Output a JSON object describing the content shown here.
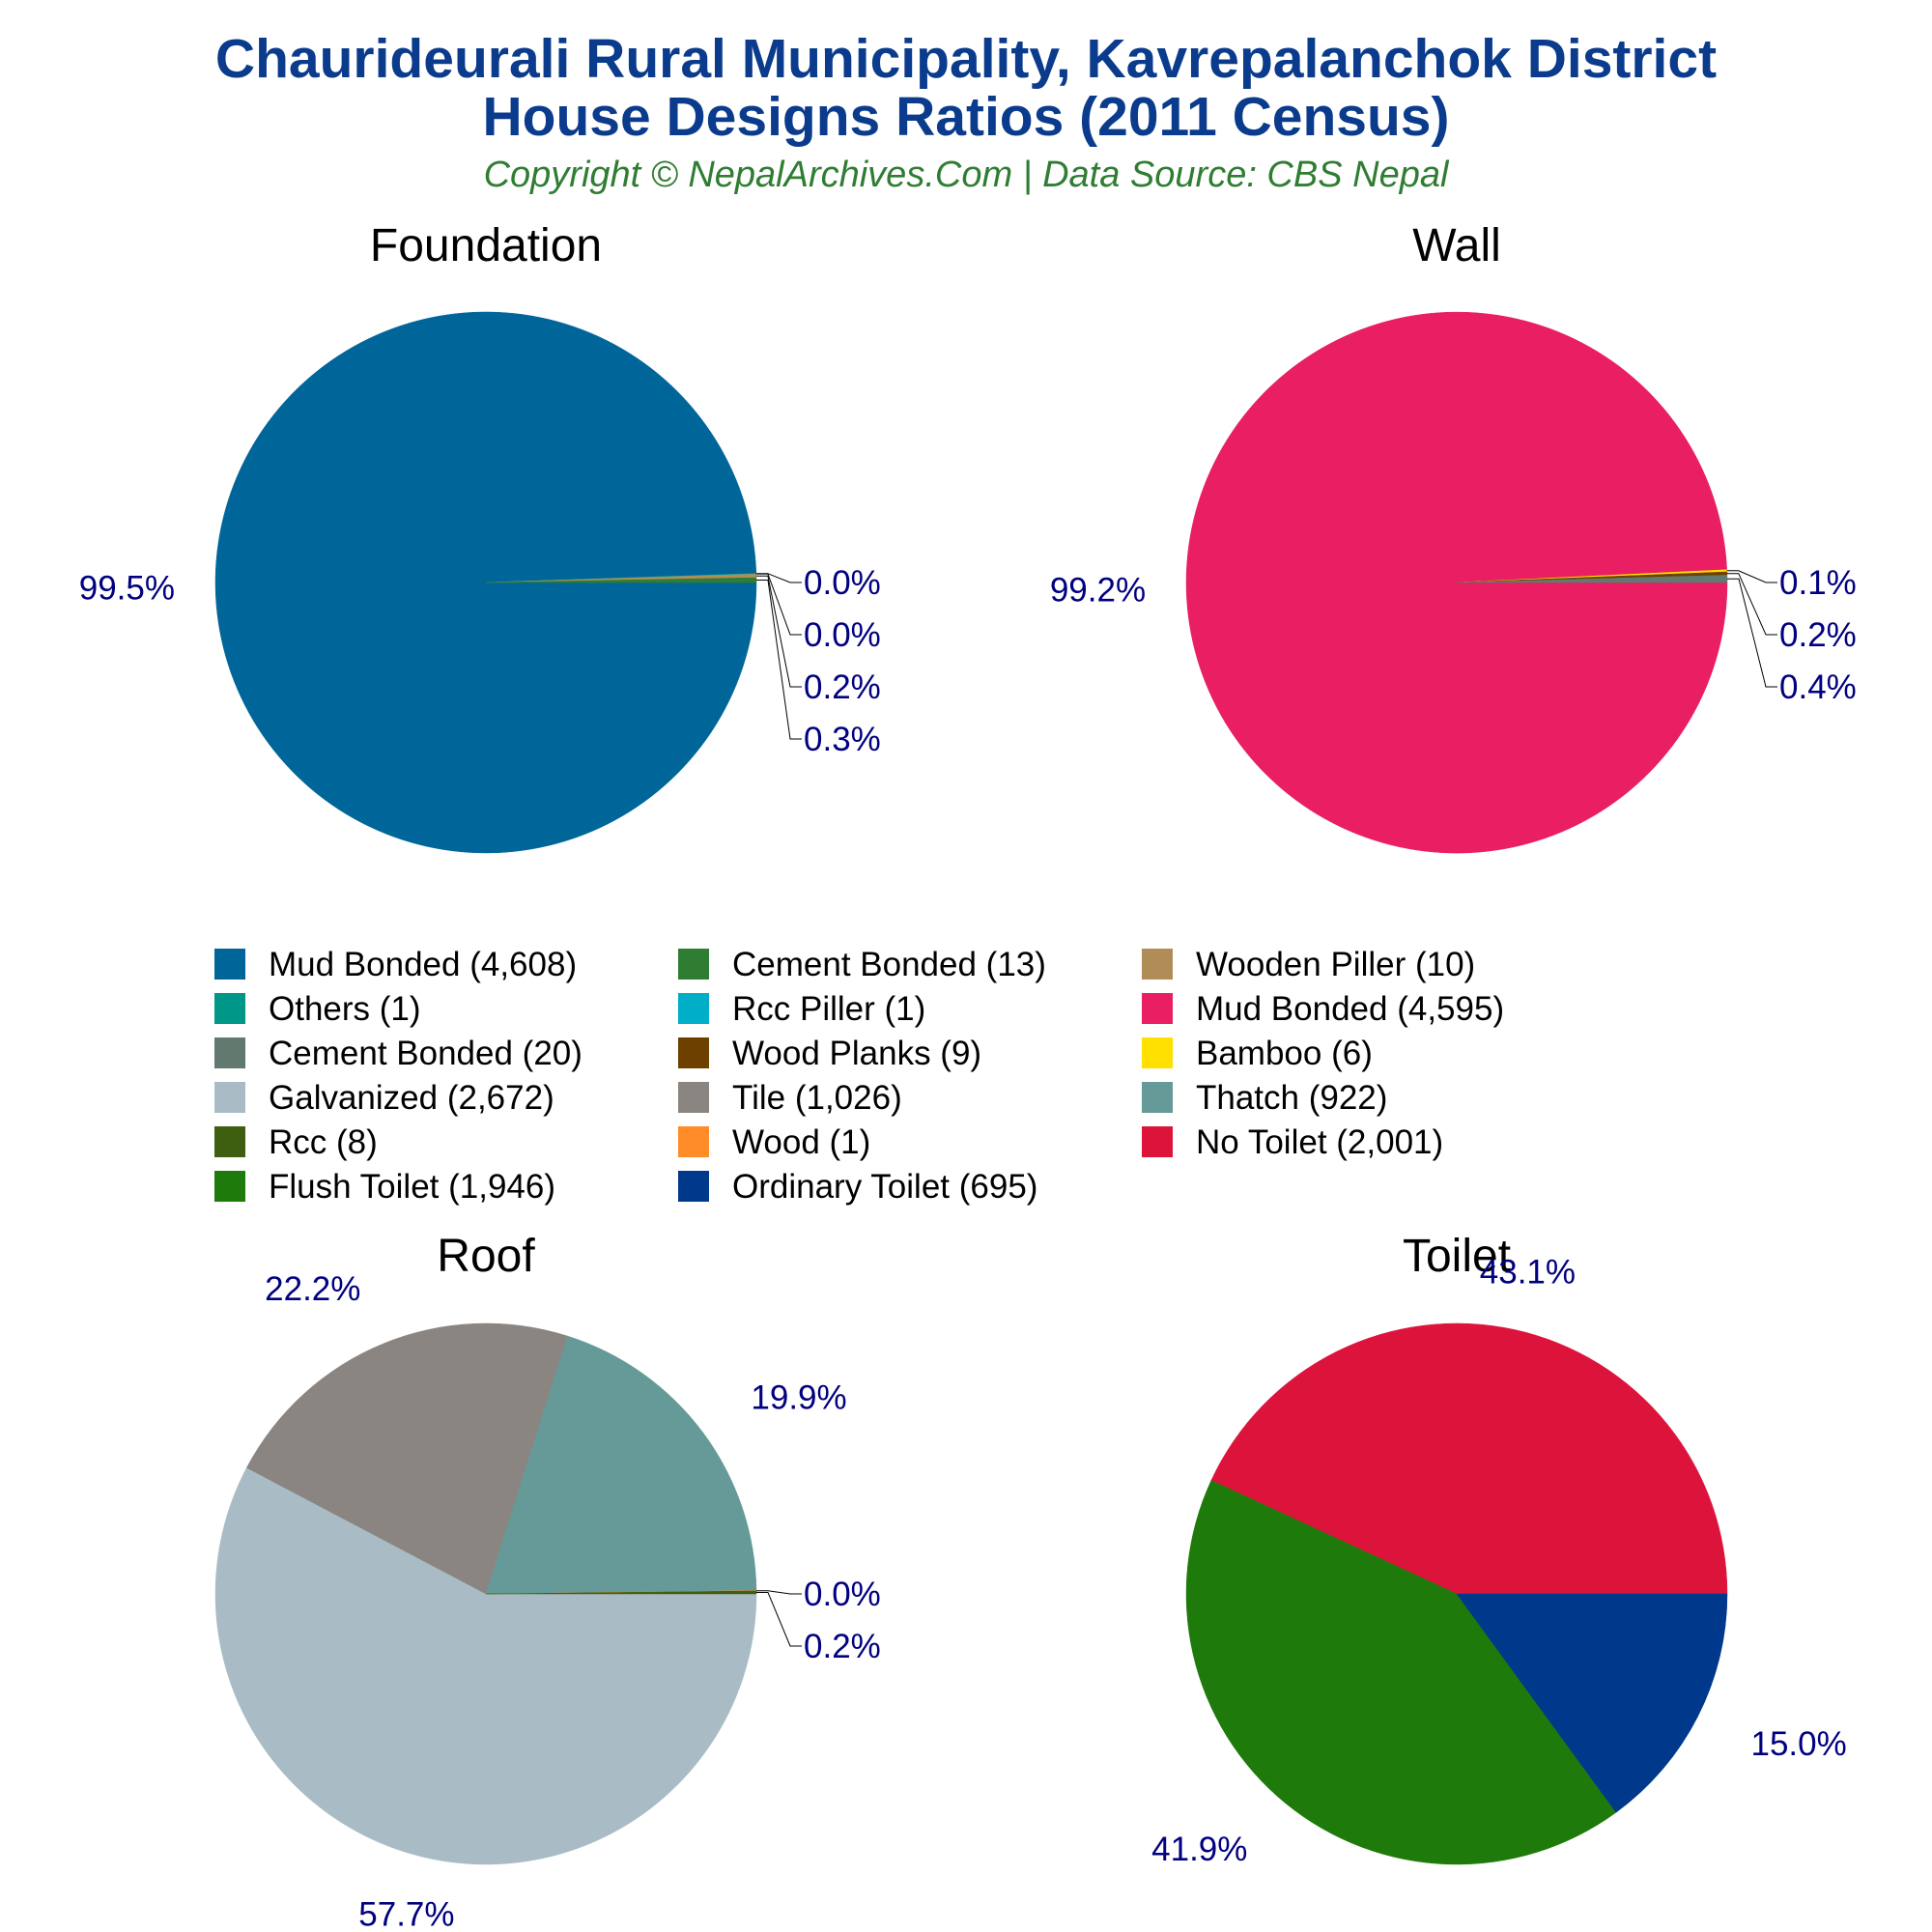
{
  "header": {
    "title_line1": "Chaurideurali Rural Municipality, Kavrepalanchok District",
    "title_line2": "House Designs Ratios (2011 Census)",
    "subtitle": "Copyright © NepalArchives.Com | Data Source: CBS Nepal"
  },
  "colors": {
    "title": "#0a3b8c",
    "subtitle": "#2f7d32",
    "pct_label": "#000080",
    "panel_title": "#000000"
  },
  "chart_data": [
    {
      "type": "pie",
      "title": "Foundation",
      "slices": [
        {
          "label": "Mud Bonded",
          "value": 4608,
          "pct": "99.5%",
          "color": "#006699"
        },
        {
          "label": "Others",
          "value": 1,
          "pct": "0.0%",
          "color": "#009688"
        },
        {
          "label": "Rcc Piller",
          "value": 1,
          "pct": "0.0%",
          "color": "#00aec7"
        },
        {
          "label": "Wooden Piller",
          "value": 10,
          "pct": "0.2%",
          "color": "#b08d57"
        },
        {
          "label": "Cement Bonded",
          "value": 13,
          "pct": "0.3%",
          "color": "#2e7d32"
        }
      ]
    },
    {
      "type": "pie",
      "title": "Wall",
      "slices": [
        {
          "label": "Mud Bonded",
          "value": 4595,
          "pct": "99.2%",
          "color": "#e91e63"
        },
        {
          "label": "Bamboo",
          "value": 6,
          "pct": "0.1%",
          "color": "#ffe000"
        },
        {
          "label": "Wood Planks",
          "value": 9,
          "pct": "0.2%",
          "color": "#6d4000"
        },
        {
          "label": "Cement Bonded",
          "value": 20,
          "pct": "0.4%",
          "color": "#627970"
        }
      ]
    },
    {
      "type": "pie",
      "title": "Roof",
      "slices": [
        {
          "label": "Galvanized",
          "value": 2672,
          "pct": "57.7%",
          "color": "#a9bcc5"
        },
        {
          "label": "Tile",
          "value": 1026,
          "pct": "22.2%",
          "color": "#8a8580"
        },
        {
          "label": "Thatch",
          "value": 922,
          "pct": "19.9%",
          "color": "#659a98"
        },
        {
          "label": "Wood",
          "value": 1,
          "pct": "0.0%",
          "color": "#ff8c28"
        },
        {
          "label": "Rcc",
          "value": 8,
          "pct": "0.2%",
          "color": "#3e5f10"
        }
      ]
    },
    {
      "type": "pie",
      "title": "Toilet",
      "slices": [
        {
          "label": "No Toilet",
          "value": 2001,
          "pct": "43.1%",
          "color": "#dc143c"
        },
        {
          "label": "Flush Toilet",
          "value": 1946,
          "pct": "41.9%",
          "color": "#1e7a0a"
        },
        {
          "label": "Ordinary Toilet",
          "value": 695,
          "pct": "15.0%",
          "color": "#00388c"
        }
      ]
    }
  ],
  "legend": {
    "placement": "center",
    "items": [
      {
        "text": "Mud Bonded (4,608)",
        "color": "#006699"
      },
      {
        "text": "Cement Bonded (13)",
        "color": "#2e7d32"
      },
      {
        "text": "Wooden Piller (10)",
        "color": "#b08d57"
      },
      {
        "text": "Others (1)",
        "color": "#009688"
      },
      {
        "text": "Rcc Piller (1)",
        "color": "#00aec7"
      },
      {
        "text": "Mud Bonded (4,595)",
        "color": "#e91e63"
      },
      {
        "text": "Cement Bonded (20)",
        "color": "#627970"
      },
      {
        "text": "Wood Planks (9)",
        "color": "#6d4000"
      },
      {
        "text": "Bamboo (6)",
        "color": "#ffe000"
      },
      {
        "text": "Galvanized (2,672)",
        "color": "#a9bcc5"
      },
      {
        "text": "Tile (1,026)",
        "color": "#8a8580"
      },
      {
        "text": "Thatch (922)",
        "color": "#659a98"
      },
      {
        "text": "Rcc (8)",
        "color": "#3e5f10"
      },
      {
        "text": "Wood (1)",
        "color": "#ff8c28"
      },
      {
        "text": "No Toilet (2,001)",
        "color": "#dc143c"
      },
      {
        "text": "Flush Toilet (1,946)",
        "color": "#1e7a0a"
      },
      {
        "text": "Ordinary Toilet (695)",
        "color": "#00388c"
      }
    ]
  }
}
